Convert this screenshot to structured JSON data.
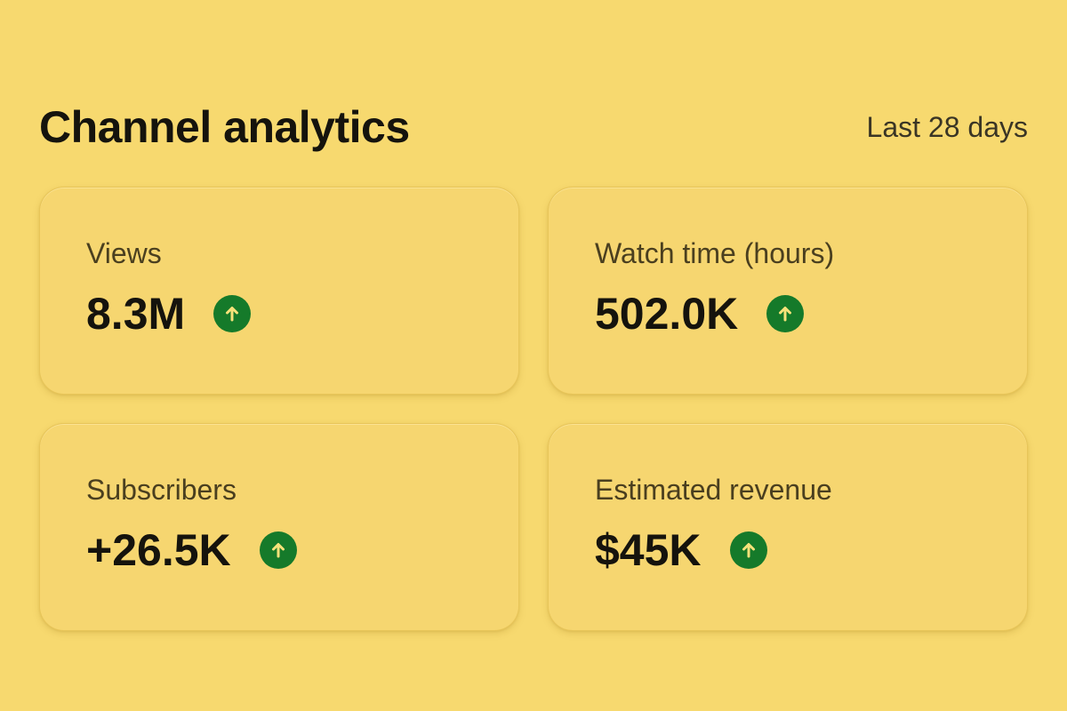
{
  "header": {
    "title": "Channel analytics",
    "range": "Last 28 days"
  },
  "metrics": [
    {
      "label": "Views",
      "value": "8.3M",
      "trend_icon": "arrow-up-icon",
      "trend_color": "#157a2a"
    },
    {
      "label": "Watch time (hours)",
      "value": "502.0K",
      "trend_icon": "arrow-up-icon",
      "trend_color": "#157a2a"
    },
    {
      "label": "Subscribers",
      "value": "+26.5K",
      "trend_icon": "arrow-up-icon",
      "trend_color": "#157a2a"
    },
    {
      "label": "Estimated revenue",
      "value": "$45K",
      "trend_icon": "arrow-up-icon",
      "trend_color": "#157a2a"
    }
  ],
  "colors": {
    "background": "#f7d96f",
    "card": "#f6d670",
    "positive": "#157a2a"
  }
}
